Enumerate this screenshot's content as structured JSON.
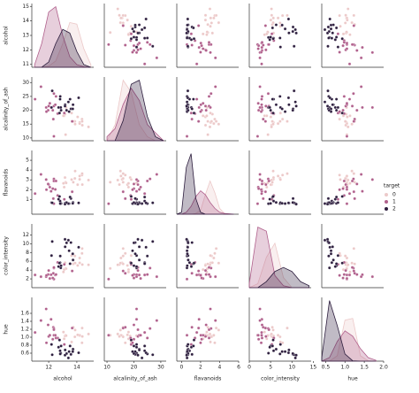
{
  "chart_data": {
    "type": "pairplot",
    "legend_title": "target",
    "series": [
      {
        "name": "0",
        "color": "#ecc9c9",
        "values": [
          [
            14.2,
            15.6,
            3.06,
            5.64,
            1.04
          ],
          [
            13.2,
            11.2,
            2.76,
            4.38,
            1.05
          ],
          [
            13.16,
            18.6,
            3.24,
            5.68,
            1.03
          ],
          [
            14.37,
            16.8,
            3.49,
            7.8,
            0.86
          ],
          [
            13.24,
            21,
            2.69,
            4.32,
            1.04
          ],
          [
            14.2,
            15.2,
            3.39,
            6.75,
            1.05
          ],
          [
            14.39,
            14.6,
            2.52,
            5.25,
            1.02
          ],
          [
            14.06,
            17.6,
            2.51,
            5.05,
            1.06
          ],
          [
            14.83,
            14,
            2.98,
            5.2,
            1.08
          ],
          [
            13.86,
            16,
            3.15,
            7.22,
            1.01
          ],
          [
            13.1,
            18,
            2.26,
            4.1,
            0.96
          ],
          [
            13.75,
            16,
            2.76,
            5.4,
            1.25
          ],
          [
            14.38,
            16,
            3.64,
            8.9,
            1.23
          ],
          [
            13.63,
            19,
            3.03,
            7.3,
            0.88
          ],
          [
            13.05,
            18,
            2.65,
            3.58,
            1.13
          ],
          [
            13.88,
            15,
            3.9,
            5.6,
            1.18
          ]
        ]
      },
      {
        "name": "1",
        "color": "#b0608c",
        "values": [
          [
            12.37,
            10.6,
            0.57,
            1.95,
            1.05
          ],
          [
            12.33,
            16.8,
            1.09,
            3.27,
            1.25
          ],
          [
            12.64,
            18.8,
            1.41,
            5.75,
            0.98
          ],
          [
            13.67,
            16,
            1.79,
            3.8,
            1.23
          ],
          [
            12.37,
            26,
            3.1,
            4.45,
            1.22
          ],
          [
            12.17,
            21,
            1.84,
            2.95,
            1.45
          ],
          [
            12.37,
            21.5,
            2.89,
            4.6,
            1.19
          ],
          [
            13.11,
            19,
            1.02,
            5.3,
            0.82
          ],
          [
            11.45,
            28.5,
            3.56,
            2.5,
            1.42
          ],
          [
            12.0,
            21.5,
            2.52,
            3.9,
            1.02
          ],
          [
            11.96,
            20,
            2.58,
            3.0,
            1.31
          ],
          [
            11.82,
            21,
            3.03,
            2.5,
            1.71
          ],
          [
            12.47,
            22,
            2.03,
            2.9,
            1.05
          ],
          [
            11.03,
            24,
            1.6,
            2.9,
            1.12
          ],
          [
            12.08,
            22.5,
            2.26,
            2.1,
            1.05
          ],
          [
            12.29,
            20,
            2.11,
            2.2,
            0.95
          ],
          [
            12.52,
            25,
            2.89,
            3.0,
            0.98
          ],
          [
            11.84,
            19.5,
            2.0,
            2.8,
            0.86
          ]
        ]
      },
      {
        "name": "2",
        "color": "#2d1e3e",
        "values": [
          [
            12.86,
            21,
            0.57,
            4.5,
            0.6
          ],
          [
            12.88,
            20,
            0.6,
            5.0,
            0.78
          ],
          [
            12.81,
            24,
            0.84,
            5.7,
            0.66
          ],
          [
            12.7,
            21,
            1.03,
            4.8,
            0.75
          ],
          [
            13.73,
            22,
            0.7,
            6.3,
            0.7
          ],
          [
            13.45,
            19.5,
            0.58,
            8.4,
            0.64
          ],
          [
            12.82,
            25,
            0.58,
            7.2,
            0.58
          ],
          [
            13.58,
            20.5,
            1.1,
            10.26,
            0.57
          ],
          [
            13.4,
            23,
            0.58,
            10.8,
            0.48
          ],
          [
            12.2,
            21,
            0.68,
            7.3,
            0.82
          ],
          [
            13.17,
            22,
            0.63,
            9.3,
            0.68
          ],
          [
            14.13,
            24.5,
            0.65,
            9.2,
            0.61
          ],
          [
            13.71,
            20.5,
            0.61,
            7.7,
            0.64
          ],
          [
            13.52,
            24,
            1.25,
            5.45,
            0.78
          ],
          [
            12.25,
            27,
            0.66,
            10.5,
            0.56
          ],
          [
            13.27,
            20,
            0.69,
            10.2,
            0.59
          ],
          [
            12.77,
            19,
            1.31,
            5.6,
            0.93
          ],
          [
            13.16,
            21.5,
            0.53,
            11.0,
            0.55
          ]
        ]
      }
    ],
    "variables": [
      {
        "name": "alcohol",
        "lim": [
          10.8,
          15.2
        ],
        "xticks": [
          12,
          14
        ],
        "yticks": [
          11,
          12,
          13,
          14,
          15
        ],
        "density": {
          "x": [
            11,
            11.5,
            12,
            12.5,
            13,
            13.5,
            14,
            14.5,
            15
          ],
          "series": [
            [
              0,
              0,
              0.02,
              0.12,
              0.45,
              0.85,
              0.82,
              0.35,
              0.05
            ],
            [
              0.05,
              0.45,
              1.05,
              1.15,
              0.6,
              0.2,
              0.05,
              0.01,
              0
            ],
            [
              0,
              0,
              0.1,
              0.45,
              0.72,
              0.65,
              0.3,
              0.05,
              0
            ]
          ]
        }
      },
      {
        "name": "alcalinity_of_ash",
        "lim": [
          9,
          32
        ],
        "xticks": [
          10,
          20,
          30
        ],
        "yticks": [
          10,
          15,
          20,
          25,
          30
        ],
        "density": {
          "x": [
            10,
            13,
            16,
            19,
            22,
            25,
            28,
            31
          ],
          "series": [
            [
              0,
              0.04,
              0.15,
              0.12,
              0.04,
              0.01,
              0,
              0
            ],
            [
              0.01,
              0.03,
              0.09,
              0.13,
              0.1,
              0.04,
              0.02,
              0
            ],
            [
              0,
              0,
              0.05,
              0.14,
              0.15,
              0.06,
              0.01,
              0
            ]
          ]
        }
      },
      {
        "name": "flavanoids",
        "lim": [
          -0.5,
          6.0
        ],
        "xticks": [
          0,
          2,
          4,
          6
        ],
        "yticks": [
          1,
          2,
          3,
          4,
          5
        ],
        "density": {
          "x": [
            -0.5,
            0,
            0.5,
            1,
            1.5,
            2,
            2.5,
            3,
            3.5,
            4,
            4.5,
            5,
            5.5
          ],
          "series": [
            [
              0,
              0,
              0,
              0,
              0.02,
              0.1,
              0.5,
              0.85,
              0.55,
              0.15,
              0.02,
              0,
              0
            ],
            [
              0,
              0,
              0.05,
              0.2,
              0.45,
              0.6,
              0.5,
              0.3,
              0.15,
              0.05,
              0.02,
              0.01,
              0
            ],
            [
              0,
              0.05,
              1.2,
              1.55,
              0.4,
              0.05,
              0,
              0,
              0,
              0,
              0,
              0,
              0
            ]
          ]
        }
      },
      {
        "name": "color_intensity",
        "lim": [
          0,
          14.5
        ],
        "xticks": [
          0,
          5,
          10,
          15
        ],
        "yticks": [
          2,
          4,
          6,
          8,
          10,
          12
        ],
        "density": {
          "x": [
            0,
            2,
            4,
            6,
            8,
            10,
            12,
            14
          ],
          "series": [
            [
              0,
              0.02,
              0.15,
              0.22,
              0.05,
              0,
              0,
              0
            ],
            [
              0.02,
              0.3,
              0.28,
              0.06,
              0.01,
              0,
              0,
              0
            ],
            [
              0,
              0,
              0.03,
              0.08,
              0.1,
              0.08,
              0.03,
              0.01
            ]
          ]
        }
      },
      {
        "name": "hue",
        "lim": [
          0.4,
          2.0
        ],
        "xticks": [
          0.5,
          {
            "value": 1,
            "label": "1.0"
          },
          1.5,
          {
            "value": 2,
            "label": "2.0"
          }
        ],
        "yticks": [
          0.6,
          0.8,
          {
            "value": 1,
            "label": "1.0"
          },
          1.2,
          1.4,
          1.6
        ],
        "density": {
          "x": [
            0.4,
            0.6,
            0.8,
            1.0,
            1.2,
            1.4,
            1.6,
            1.8
          ],
          "series": [
            [
              0,
              0,
              0.3,
              2.3,
              2.4,
              0.3,
              0.02,
              0
            ],
            [
              0,
              0.2,
              1.1,
              1.7,
              1.4,
              0.7,
              0.2,
              0.05
            ],
            [
              0.2,
              3.4,
              2.0,
              0.4,
              0.02,
              0,
              0,
              0
            ]
          ]
        }
      }
    ]
  }
}
